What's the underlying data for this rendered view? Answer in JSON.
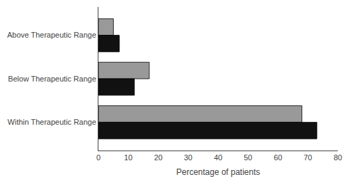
{
  "chart_data": {
    "type": "bar",
    "orientation": "horizontal",
    "categories": [
      "Within Therapeutic Range",
      "Below Therapeutic Range",
      "Above Therapeutic Range"
    ],
    "series": [
      {
        "color": "#999999",
        "values": [
          68,
          17,
          5
        ]
      },
      {
        "color": "#111111",
        "values": [
          73,
          12,
          7
        ]
      }
    ],
    "xlabel": "Percentage of patients",
    "xlim": [
      0,
      80
    ],
    "xticks": [
      0,
      10,
      20,
      30,
      40,
      50,
      60,
      70,
      80
    ],
    "grid": false
  }
}
